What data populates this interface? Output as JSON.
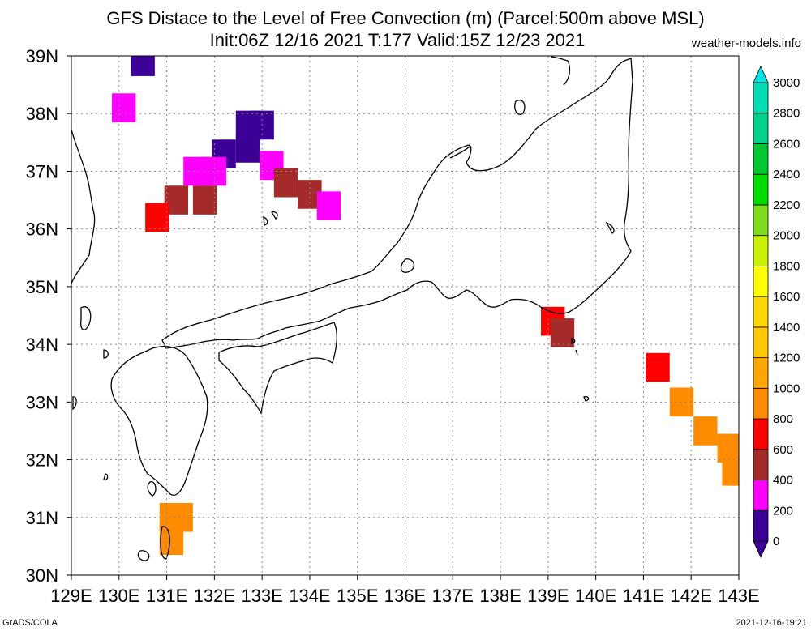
{
  "title": {
    "line1": "GFS Distace to the Level of Free Convection (m) (Parcel:500m above MSL)",
    "line2": "Init:06Z 12/16 2021 T:177 Valid:15Z 12/23 2021"
  },
  "credit": "weather-models.info",
  "footer": {
    "left": "GrADS/COLA",
    "right": "2021-12-16-19:21"
  },
  "map": {
    "lon_range": [
      129,
      143
    ],
    "lat_range": [
      30,
      39
    ],
    "lon_labels": [
      "129E",
      "130E",
      "131E",
      "132E",
      "133E",
      "134E",
      "135E",
      "136E",
      "137E",
      "138E",
      "139E",
      "140E",
      "141E",
      "142E",
      "143E"
    ],
    "lat_labels": [
      "30N",
      "31N",
      "32N",
      "33N",
      "34N",
      "35N",
      "36N",
      "37N",
      "38N",
      "39N"
    ],
    "grid": "dotted"
  },
  "colorbar": {
    "ticks": [
      "0",
      "200",
      "400",
      "600",
      "800",
      "1000",
      "1200",
      "1400",
      "1600",
      "1800",
      "2000",
      "2200",
      "2400",
      "2600",
      "2800",
      "3000"
    ],
    "colors": [
      "#3c0096",
      "#ff00ff",
      "#a52a2a",
      "#ff0000",
      "#ff8c00",
      "#ffa500",
      "#ffc800",
      "#ffd700",
      "#ffff00",
      "#c8f000",
      "#7ddc1e",
      "#00dc00",
      "#00c832",
      "#00d28c",
      "#00dcb4",
      "#00e6e6"
    ],
    "below_color": "#3c0096",
    "above_color": "#00e6e6"
  },
  "field_cells": [
    {
      "lon": 130.5,
      "lat": 38.9,
      "value": 50
    },
    {
      "lon": 130.1,
      "lat": 38.1,
      "value": 350
    },
    {
      "lon": 132.7,
      "lat": 37.8,
      "value": 50
    },
    {
      "lon": 132.2,
      "lat": 37.3,
      "value": 50
    },
    {
      "lon": 132.7,
      "lat": 37.4,
      "value": 150
    },
    {
      "lon": 133.0,
      "lat": 37.8,
      "value": 150
    },
    {
      "lon": 131.6,
      "lat": 37.0,
      "value": 350
    },
    {
      "lon": 132.0,
      "lat": 37.0,
      "value": 350
    },
    {
      "lon": 133.2,
      "lat": 37.1,
      "value": 350
    },
    {
      "lon": 133.5,
      "lat": 36.8,
      "value": 450
    },
    {
      "lon": 134.0,
      "lat": 36.6,
      "value": 450
    },
    {
      "lon": 134.4,
      "lat": 36.4,
      "value": 350
    },
    {
      "lon": 131.2,
      "lat": 36.5,
      "value": 450
    },
    {
      "lon": 131.8,
      "lat": 36.5,
      "value": 450
    },
    {
      "lon": 130.8,
      "lat": 36.2,
      "value": 700
    },
    {
      "lon": 139.1,
      "lat": 34.4,
      "value": 700
    },
    {
      "lon": 139.3,
      "lat": 34.2,
      "value": 450
    },
    {
      "lon": 141.3,
      "lat": 33.6,
      "value": 700
    },
    {
      "lon": 141.8,
      "lat": 33.0,
      "value": 900
    },
    {
      "lon": 142.3,
      "lat": 32.5,
      "value": 900
    },
    {
      "lon": 142.8,
      "lat": 32.2,
      "value": 900
    },
    {
      "lon": 142.9,
      "lat": 31.8,
      "value": 900
    },
    {
      "lon": 131.1,
      "lat": 30.6,
      "value": 900
    },
    {
      "lon": 131.1,
      "lat": 31.0,
      "value": 900
    },
    {
      "lon": 131.3,
      "lat": 31.0,
      "value": 900
    }
  ]
}
